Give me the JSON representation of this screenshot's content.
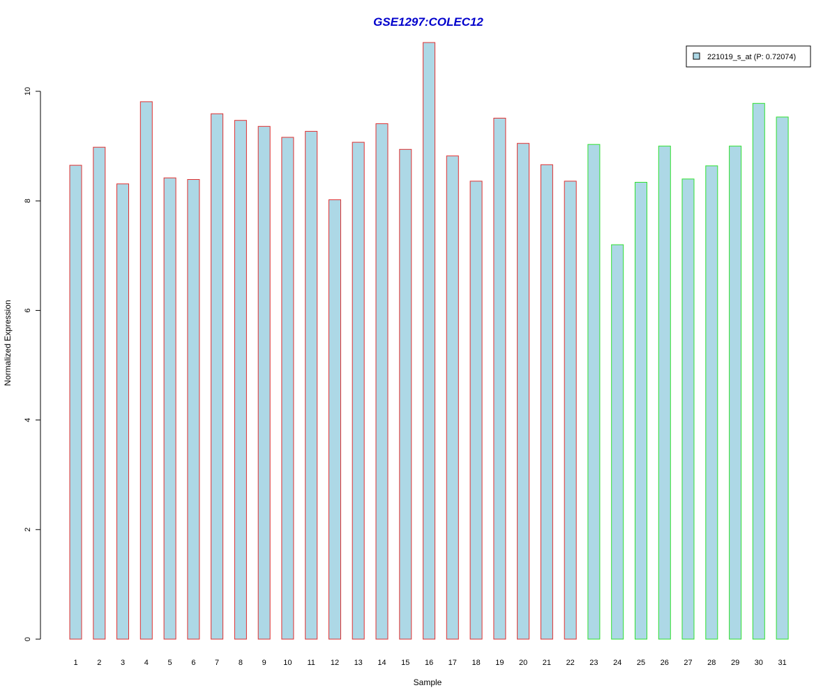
{
  "chart_data": {
    "type": "bar",
    "title": "GSE1297:COLEC12",
    "xlabel": "Sample",
    "ylabel": "Normalized Expression",
    "ylim": [
      0,
      11
    ],
    "yticks": [
      0,
      2,
      4,
      6,
      8,
      10
    ],
    "categories": [
      "1",
      "2",
      "3",
      "4",
      "5",
      "6",
      "7",
      "8",
      "9",
      "10",
      "11",
      "12",
      "13",
      "14",
      "15",
      "16",
      "17",
      "18",
      "19",
      "20",
      "21",
      "22",
      "23",
      "24",
      "25",
      "26",
      "27",
      "28",
      "29",
      "30",
      "31"
    ],
    "values": [
      8.65,
      8.98,
      8.31,
      9.81,
      8.42,
      8.39,
      9.59,
      9.47,
      9.36,
      9.16,
      9.27,
      8.02,
      9.07,
      9.41,
      8.94,
      10.89,
      8.82,
      8.36,
      9.51,
      9.05,
      8.66,
      8.36,
      9.03,
      7.2,
      8.34,
      9.0,
      8.4,
      8.64,
      9.0,
      9.78,
      9.53
    ],
    "group_border_colors": [
      "#e03030",
      "#e03030",
      "#e03030",
      "#e03030",
      "#e03030",
      "#e03030",
      "#e03030",
      "#e03030",
      "#e03030",
      "#e03030",
      "#e03030",
      "#e03030",
      "#e03030",
      "#e03030",
      "#e03030",
      "#e03030",
      "#e03030",
      "#e03030",
      "#e03030",
      "#e03030",
      "#e03030",
      "#e03030",
      "#30e030",
      "#30e030",
      "#30e030",
      "#30e030",
      "#30e030",
      "#30e030",
      "#30e030",
      "#30e030",
      "#30e030"
    ],
    "fill_color": "#add8e6",
    "title_color": "#0000cc",
    "legend": {
      "label": "221019_s_at (P: 0.72074)",
      "placement": "top-right"
    },
    "grid": false
  }
}
